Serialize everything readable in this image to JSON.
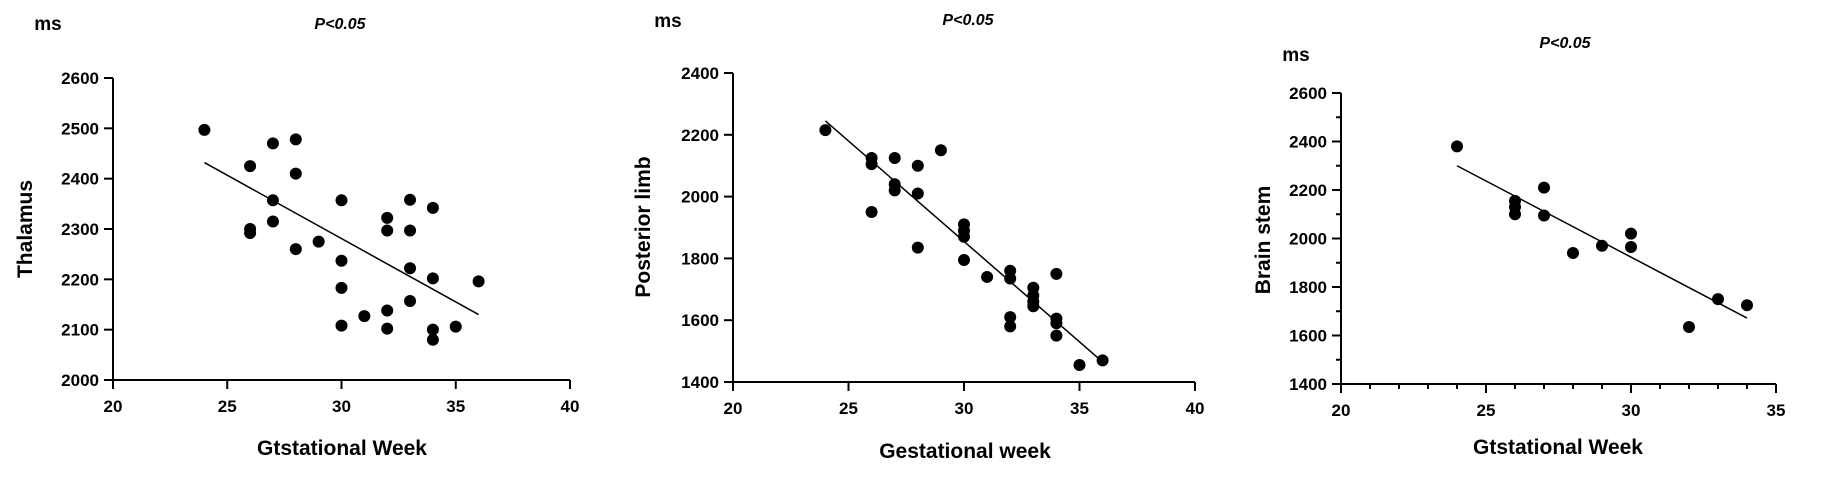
{
  "chart_data": [
    {
      "type": "scatter",
      "title": "",
      "annotation": "P<0.05",
      "unit": "ms",
      "xlabel": "Gtstational Week",
      "ylabel": "Thalamus",
      "xlim": [
        20,
        40
      ],
      "ylim": [
        2000,
        2600
      ],
      "xticks": [
        20,
        25,
        30,
        35,
        40
      ],
      "yticks": [
        2000,
        2100,
        2200,
        2300,
        2400,
        2500,
        2600
      ],
      "points": [
        [
          24,
          2497
        ],
        [
          26,
          2425
        ],
        [
          26,
          2300
        ],
        [
          26,
          2292
        ],
        [
          27,
          2470
        ],
        [
          27,
          2357
        ],
        [
          27,
          2315
        ],
        [
          28,
          2478
        ],
        [
          28,
          2410
        ],
        [
          28,
          2260
        ],
        [
          29,
          2275
        ],
        [
          30,
          2357
        ],
        [
          30,
          2237
        ],
        [
          30,
          2183
        ],
        [
          30,
          2108
        ],
        [
          31,
          2127
        ],
        [
          32,
          2322
        ],
        [
          32,
          2297
        ],
        [
          32,
          2138
        ],
        [
          32,
          2102
        ],
        [
          33,
          2358
        ],
        [
          33,
          2297
        ],
        [
          33,
          2222
        ],
        [
          33,
          2157
        ],
        [
          34,
          2342
        ],
        [
          34,
          2202
        ],
        [
          34,
          2100
        ],
        [
          34,
          2080
        ],
        [
          35,
          2106
        ],
        [
          36,
          2196
        ]
      ],
      "fit_line": {
        "x": [
          24,
          36
        ],
        "y": [
          2432,
          2130
        ]
      }
    },
    {
      "type": "scatter",
      "title": "",
      "annotation": "P<0.05",
      "unit": "ms",
      "xlabel": "Gestational week",
      "ylabel": "Posterior limb",
      "xlim": [
        20,
        40
      ],
      "ylim": [
        1400,
        2400
      ],
      "xticks": [
        20,
        25,
        30,
        35,
        40
      ],
      "yticks": [
        1400,
        1600,
        1800,
        2000,
        2200,
        2400
      ],
      "points": [
        [
          24,
          2215
        ],
        [
          26,
          2125
        ],
        [
          26,
          2105
        ],
        [
          26,
          1950
        ],
        [
          27,
          2125
        ],
        [
          27,
          2040
        ],
        [
          27,
          2020
        ],
        [
          28,
          2100
        ],
        [
          28,
          2010
        ],
        [
          28,
          1835
        ],
        [
          29,
          2150
        ],
        [
          30,
          1910
        ],
        [
          30,
          1890
        ],
        [
          30,
          1870
        ],
        [
          30,
          1795
        ],
        [
          31,
          1740
        ],
        [
          32,
          1760
        ],
        [
          32,
          1735
        ],
        [
          32,
          1610
        ],
        [
          32,
          1580
        ],
        [
          33,
          1705
        ],
        [
          33,
          1680
        ],
        [
          33,
          1660
        ],
        [
          33,
          1645
        ],
        [
          34,
          1750
        ],
        [
          34,
          1605
        ],
        [
          34,
          1590
        ],
        [
          34,
          1550
        ],
        [
          35,
          1455
        ],
        [
          36,
          1470
        ]
      ],
      "fit_line": {
        "x": [
          24,
          36
        ],
        "y": [
          2245,
          1465
        ]
      }
    },
    {
      "type": "scatter",
      "title": "",
      "annotation": "P<0.05",
      "unit": "ms",
      "xlabel": "Gtstational Week",
      "ylabel": "Brain stem",
      "xlim": [
        20,
        35
      ],
      "ylim": [
        1400,
        2600
      ],
      "xticks": [
        20,
        25,
        30,
        35
      ],
      "yticks": [
        1400,
        1600,
        1800,
        2000,
        2200,
        2400,
        2600
      ],
      "points": [
        [
          24,
          2380
        ],
        [
          26,
          2155
        ],
        [
          26,
          2130
        ],
        [
          26,
          2100
        ],
        [
          27,
          2210
        ],
        [
          27,
          2095
        ],
        [
          28,
          1940
        ],
        [
          29,
          1970
        ],
        [
          30,
          2020
        ],
        [
          30,
          1965
        ],
        [
          32,
          1635
        ],
        [
          33,
          1750
        ],
        [
          34,
          1725
        ]
      ],
      "fit_line": {
        "x": [
          24,
          34
        ],
        "y": [
          2300,
          1672
        ]
      }
    }
  ]
}
